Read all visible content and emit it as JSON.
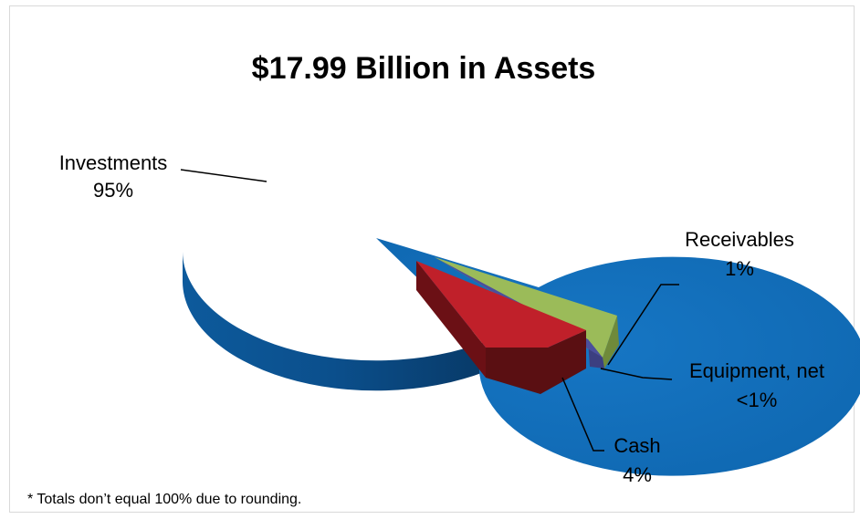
{
  "chart_data": {
    "type": "pie",
    "title": "$17.99 Billion in Assets",
    "footnote": "* Totals don’t equal 100% due to rounding.",
    "slices": [
      {
        "name": "Investments",
        "percent_label": "95%",
        "value": 95,
        "color": "#1470bc"
      },
      {
        "name": "Receivables",
        "percent_label": "1%",
        "value": 1,
        "color": "#9bbb59"
      },
      {
        "name": "Equipment, net",
        "percent_label": "<1%",
        "value": 0.5,
        "color": "#4b4f9c"
      },
      {
        "name": "Cash",
        "percent_label": "4%",
        "value": 4,
        "color": "#c0202a"
      }
    ],
    "legend": "none",
    "grid": false
  }
}
